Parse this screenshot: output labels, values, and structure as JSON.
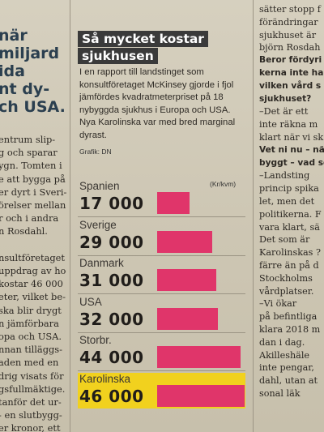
{
  "left_column": {
    "headline_lines": [
      "när",
      "miljard",
      "ida",
      "nt dy-",
      "ch USA."
    ],
    "body_lines": [
      "entrum slip-",
      "g och sparar",
      "ygn. Tomten i",
      "e att bygga på",
      "er dyrt i Sveri-",
      "örelser mellan",
      "r och i andra",
      "n Rosdahl.",
      "",
      "nsultföretaget",
      "uppdrag av ho-",
      "kostar 46 000",
      "eter, vilket be-",
      "ska blir drygt",
      "n jämförbara",
      "opa och USA.",
      "nnan tilläggs-",
      "aden med en",
      "drig visats för",
      "gsfullmäktige.",
      "tanför det ur-",
      "- en slutbygg-",
      "er kronor, ett"
    ]
  },
  "right_column": {
    "lines": [
      {
        "text": "sätter stopp f",
        "bold": false
      },
      {
        "text": "förändringar",
        "bold": false
      },
      {
        "text": "sjukhuset är",
        "bold": false
      },
      {
        "text": "björn Rosdah",
        "bold": false
      },
      {
        "text": "Beror fördyri",
        "bold": true
      },
      {
        "text": "kerna inte ha",
        "bold": true
      },
      {
        "text": "vilken vård s",
        "bold": true
      },
      {
        "text": "sjukhuset?",
        "bold": true
      },
      {
        "text": "–Det är ett",
        "bold": false
      },
      {
        "text": "inte räkna m",
        "bold": false
      },
      {
        "text": "klart när vi sk",
        "bold": false
      },
      {
        "text": "Vet ni nu – nä",
        "bold": true
      },
      {
        "text": "byggt – vad so",
        "bold": true
      },
      {
        "text": "–Landsting",
        "bold": false
      },
      {
        "text": "princip spika",
        "bold": false
      },
      {
        "text": "let, men det",
        "bold": false
      },
      {
        "text": "politikerna. F",
        "bold": false
      },
      {
        "text": "vara klart, sä",
        "bold": false
      },
      {
        "text": "Det som är",
        "bold": false
      },
      {
        "text": "Karolinskas ?",
        "bold": false
      },
      {
        "text": "färre än på d",
        "bold": false
      },
      {
        "text": "Stockholms",
        "bold": false
      },
      {
        "text": "vårdplatser.",
        "bold": false
      },
      {
        "text": "–Vi ökar",
        "bold": false
      },
      {
        "text": "på befintliga",
        "bold": false
      },
      {
        "text": "klara 2018 m",
        "bold": false
      },
      {
        "text": "dan i dag.",
        "bold": false
      },
      {
        "text": "Akilleshäle",
        "bold": false
      },
      {
        "text": "inte pengar,",
        "bold": false
      },
      {
        "text": "dahl, utan at",
        "bold": false
      },
      {
        "text": "sonal läk",
        "bold": false
      }
    ]
  },
  "infographic": {
    "title_lines": [
      "Så mycket kostar",
      "sjukhusen"
    ],
    "lede": "I en rapport till landstinget som konsultföretaget McKinsey gjorde i fjol jämfördes kvadratmeterpriset på 18 nybyggda sjukhus i Europa och USA. Nya Karolinska var med bred marginal dyrast.",
    "credit": "Grafik: DN",
    "unit": "(Kr/kvm)"
  },
  "chart_data": {
    "type": "bar",
    "title": "Så mycket kostar sjukhusen",
    "unit": "(Kr/kvm)",
    "categories": [
      "Spanien",
      "Sverige",
      "Danmark",
      "USA",
      "Storbr.",
      "Karolinska"
    ],
    "values": [
      17000,
      29000,
      31000,
      32000,
      44000,
      46000
    ],
    "value_labels": [
      "17 000",
      "29 000",
      "31 000",
      "32 000",
      "44 000",
      "46 000"
    ],
    "highlighted": "Karolinska",
    "colors": {
      "bar": "#e0356a",
      "highlight_bg": "#f1d11e"
    }
  }
}
